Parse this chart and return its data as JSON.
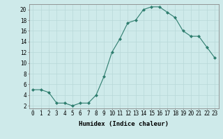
{
  "x": [
    0,
    1,
    2,
    3,
    4,
    5,
    6,
    7,
    8,
    9,
    10,
    11,
    12,
    13,
    14,
    15,
    16,
    17,
    18,
    19,
    20,
    21,
    22,
    23
  ],
  "y": [
    5,
    5,
    4.5,
    2.5,
    2.5,
    2,
    2.5,
    2.5,
    4,
    7.5,
    12,
    14.5,
    17.5,
    18,
    20,
    20.5,
    20.5,
    19.5,
    18.5,
    16,
    15,
    15,
    13,
    11
  ],
  "line_color": "#2e7d6e",
  "marker": "D",
  "marker_size": 2,
  "bg_color": "#ceeaea",
  "grid_color": "#b8d8d8",
  "xlabel": "Humidex (Indice chaleur)",
  "xlim": [
    -0.5,
    23.5
  ],
  "ylim": [
    1.5,
    21
  ],
  "yticks": [
    2,
    4,
    6,
    8,
    10,
    12,
    14,
    16,
    18,
    20
  ],
  "xticks": [
    0,
    1,
    2,
    3,
    4,
    5,
    6,
    7,
    8,
    9,
    10,
    11,
    12,
    13,
    14,
    15,
    16,
    17,
    18,
    19,
    20,
    21,
    22,
    23
  ],
  "xlabel_fontsize": 6.5,
  "tick_fontsize": 5.5
}
